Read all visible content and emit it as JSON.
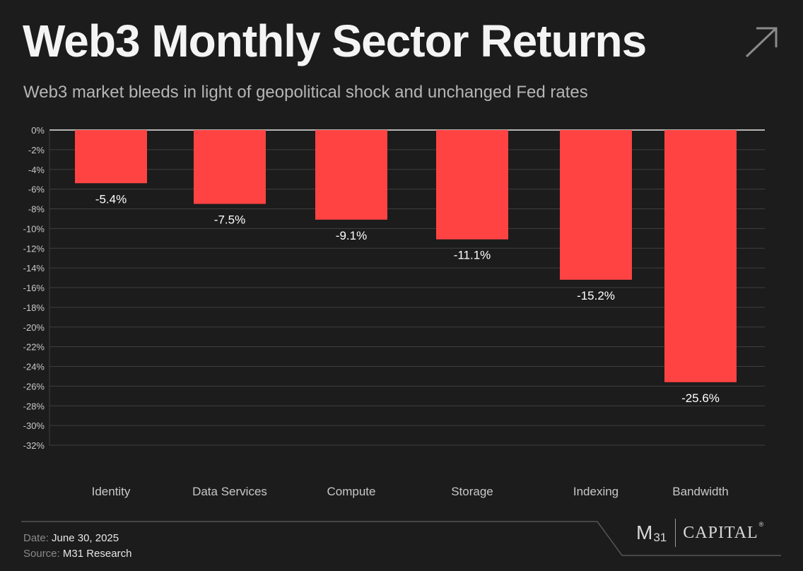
{
  "title": "Web3 Monthly Sector Returns",
  "subtitle": "Web3 market bleeds in light of geopolitical shock and unchanged Fed rates",
  "chart_data": {
    "type": "bar",
    "categories": [
      "Identity",
      "Data Services",
      "Compute",
      "Storage",
      "Indexing",
      "Bandwidth"
    ],
    "values": [
      -5.4,
      -7.5,
      -9.1,
      -11.1,
      -15.2,
      -25.6
    ],
    "data_labels": [
      "-5.4%",
      "-7.5%",
      "-9.1%",
      "-11.1%",
      "-15.2%",
      "-25.6%"
    ],
    "ylim": [
      -32,
      0
    ],
    "ytick_step": 2,
    "ytick_format": "percent",
    "grid": true,
    "bar_color": "#ff4343"
  },
  "footer": {
    "date_label": "Date:",
    "date_value": "June 30, 2025",
    "source_label": "Source:",
    "source_value": "M31 Research"
  },
  "logo": {
    "m": "M",
    "num": "31",
    "capital": "CAPITAL",
    "reg": "®"
  },
  "icons": {
    "corner": "arrow-up-right-icon"
  }
}
